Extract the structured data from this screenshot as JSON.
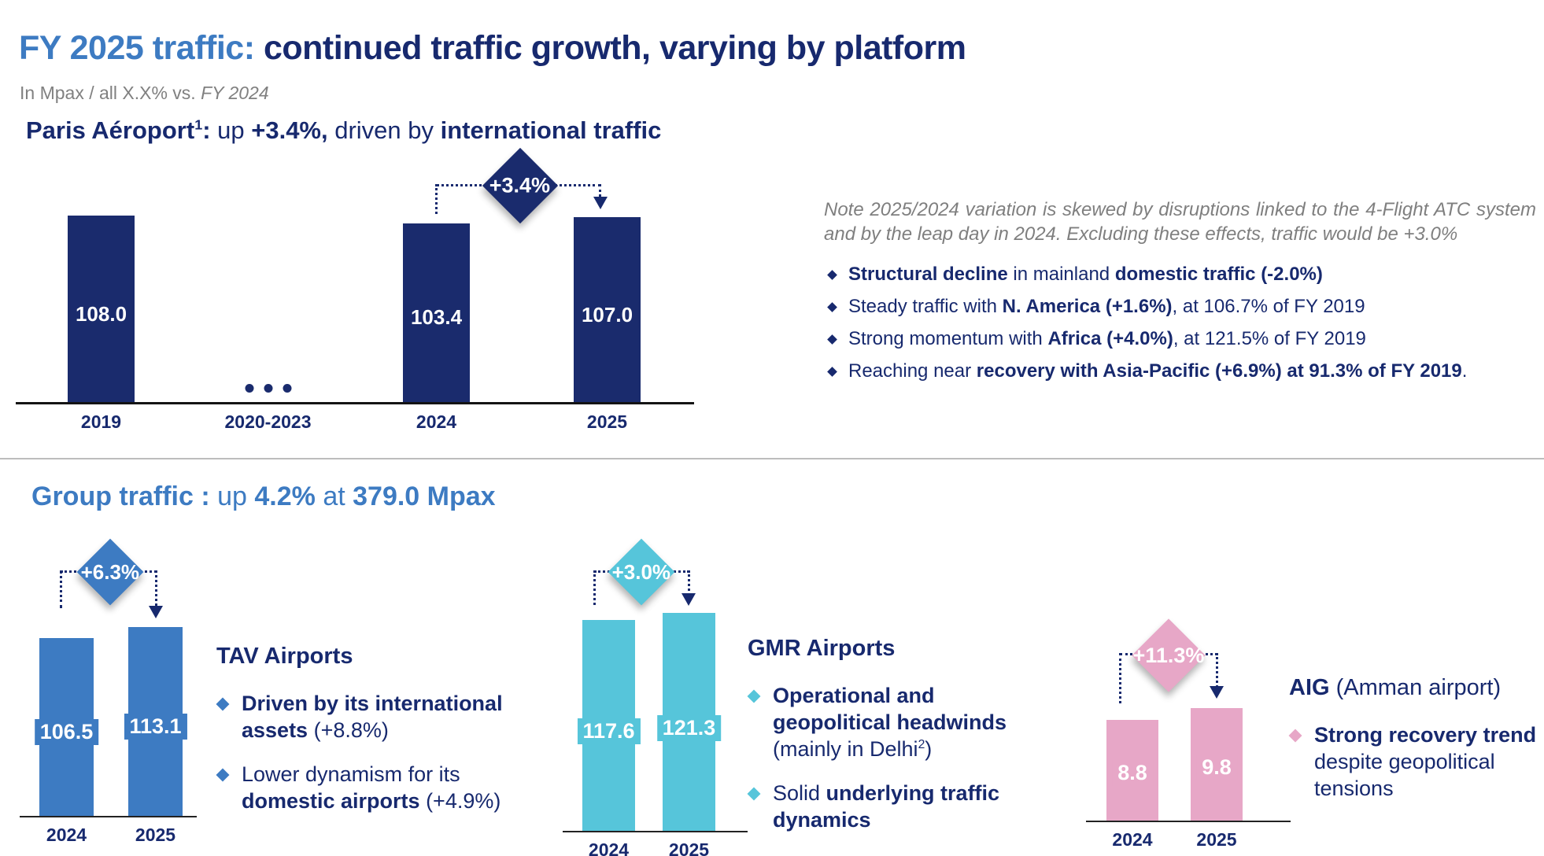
{
  "header": {
    "title_accent": "FY 2025 traffic: ",
    "title_main": "continued traffic growth, varying by platform",
    "subtitle_prefix": "In Mpax / all X.X% vs. ",
    "subtitle_year": "FY 2024"
  },
  "colors": {
    "navy": "#17296E",
    "bar_navy": "#1A2B6D",
    "accent_blue": "#3D7BC2",
    "cyan": "#56C5DA",
    "pink": "#E7A7C7",
    "gray_text": "#7F7F7F"
  },
  "paris": {
    "heading": {
      "name": "Paris Aéroport",
      "sup": "1",
      "colon": ": ",
      "up": "up ",
      "pct": "+3.4%,",
      "driven": " driven by ",
      "intl": "international traffic"
    },
    "note": "Note 2025/2024 variation is skewed by disruptions linked to the 4-Flight ATC system and by the leap day in 2024. Excluding these effects, traffic would be +3.0%",
    "bullets": {
      "b1": {
        "bold1": "Structural decline",
        "reg1": " in mainland ",
        "bold2": "domestic traffic (-2.0%)"
      },
      "b2": {
        "reg1": "Steady traffic with ",
        "bold1": "N. America (+1.6%)",
        "reg2": ", at 106.7% of FY 2019"
      },
      "b3": {
        "reg1": "Strong momentum with ",
        "bold1": "Africa (+4.0%)",
        "reg2": ", at 121.5% of FY 2019"
      },
      "b4": {
        "reg1": "Reaching near ",
        "bold1": "recovery with Asia-Pacific (+6.9%) at 91.3% of FY 2019",
        "reg2": "."
      }
    }
  },
  "group": {
    "heading": {
      "label": "Group traffic : ",
      "up": "up ",
      "pct": "4.2%",
      "at": " at ",
      "total": "379.0 Mpax"
    }
  },
  "tav": {
    "title": "TAV Airports",
    "b1": {
      "bold": "Driven by its international assets",
      "reg": " (+8.8%)"
    },
    "b2": {
      "reg": "Lower dynamism for its ",
      "bold": "domestic airports",
      "reg2": " (+4.9%)"
    }
  },
  "gmr": {
    "title": "GMR Airports",
    "b1": {
      "bold": "Operational and geopolitical headwinds",
      "reg": " (mainly in Delhi",
      "sup": "2",
      "reg2": ")"
    },
    "b2": {
      "reg": "Solid ",
      "bold": "underlying traffic dynamics"
    }
  },
  "aig": {
    "title_bold": "AIG",
    "title_reg": " (Amman airport)",
    "b1": {
      "bold": "Strong recovery trend",
      "reg": " despite geopolitical tensions"
    }
  },
  "chart_data": [
    {
      "id": "paris",
      "type": "bar",
      "title": "Paris Aéroport traffic (Mpax)",
      "categories": [
        "2019",
        "2020-2023",
        "2024",
        "2025"
      ],
      "values": [
        108.0,
        null,
        103.4,
        107.0
      ],
      "value_labels": [
        "108.0",
        "...",
        "103.4",
        "107.0"
      ],
      "delta": "+3.4%",
      "unit": "Mpax",
      "bar_color": "#1A2B6D",
      "legend": "none",
      "grid": false
    },
    {
      "id": "tav",
      "type": "bar",
      "title": "TAV Airports traffic (Mpax)",
      "categories": [
        "2024",
        "2025"
      ],
      "values": [
        106.5,
        113.1
      ],
      "value_labels": [
        "106.5",
        "113.1"
      ],
      "delta": "+6.3%",
      "unit": "Mpax",
      "bar_color": "#3D7BC2",
      "legend": "none",
      "grid": false
    },
    {
      "id": "gmr",
      "type": "bar",
      "title": "GMR Airports traffic (Mpax)",
      "categories": [
        "2024",
        "2025"
      ],
      "values": [
        117.6,
        121.3
      ],
      "value_labels": [
        "117.6",
        "121.3"
      ],
      "delta": "+3.0%",
      "unit": "Mpax",
      "bar_color": "#56C5DA",
      "legend": "none",
      "grid": false
    },
    {
      "id": "aig",
      "type": "bar",
      "title": "AIG Amman airport traffic (Mpax)",
      "categories": [
        "2024",
        "2025"
      ],
      "values": [
        8.8,
        9.8
      ],
      "value_labels": [
        "8.8",
        "9.8"
      ],
      "delta": "+11.3%",
      "unit": "Mpax",
      "bar_color": "#E7A7C7",
      "legend": "none",
      "grid": false
    }
  ]
}
